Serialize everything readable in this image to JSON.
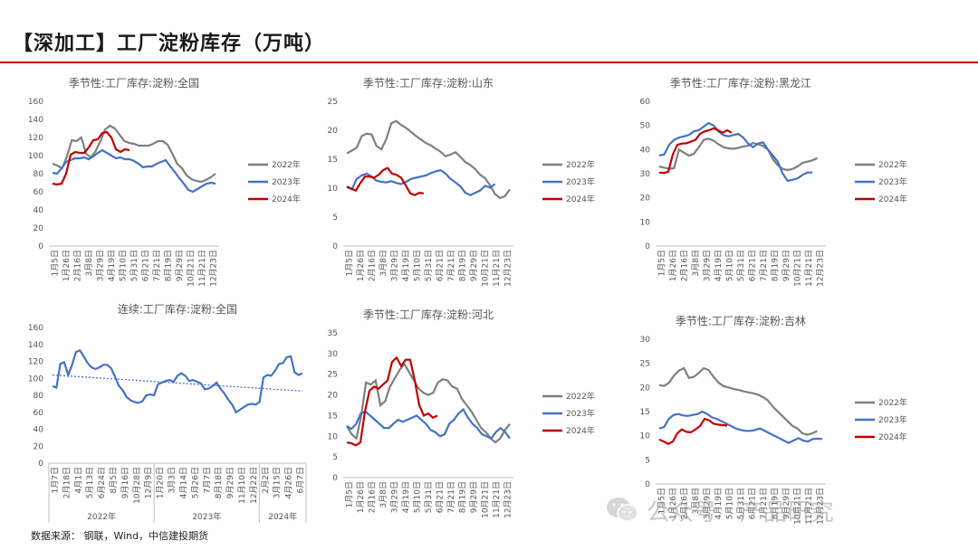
{
  "page": {
    "title": "【深加工】工厂淀粉库存（万吨）",
    "source": "数据来源：  钢联，Wind，中信建投期货",
    "watermark": "公众号 · 产品研究"
  },
  "colors": {
    "2022": "#7f7f7f",
    "2023": "#4472c4",
    "2024": "#c00000",
    "rule": "#c00000"
  },
  "season_ticks": [
    "1月5日",
    "1月26日",
    "2月16日",
    "3月8日",
    "3月29日",
    "4月19日",
    "5月10日",
    "5月31日",
    "6月21日",
    "7月21日",
    "8月19日",
    "9月29日",
    "10月21日",
    "11月21日",
    "12月23日"
  ],
  "chart_data": [
    {
      "id": "c1",
      "type": "line",
      "title": "季节性:工厂库存:淀粉:全国",
      "ylim": [
        0,
        160
      ],
      "yticks": [
        0,
        20,
        40,
        60,
        80,
        100,
        120,
        140,
        160
      ],
      "series": [
        {
          "name": "2022年",
          "values": [
            91,
            89,
            86,
            99,
            117,
            116,
            120,
            102,
            98,
            105,
            116,
            129,
            133,
            130,
            123,
            116,
            114,
            113,
            111,
            111,
            111,
            113,
            116,
            116,
            112,
            102,
            91,
            86,
            78,
            74,
            72,
            71,
            73,
            76,
            80
          ]
        },
        {
          "name": "2023年",
          "values": [
            81,
            80,
            86,
            93,
            95,
            97,
            97,
            98,
            96,
            99,
            103,
            106,
            103,
            100,
            97,
            98,
            96,
            96,
            94,
            91,
            87,
            88,
            88,
            91,
            93,
            95,
            88,
            82,
            75,
            69,
            62,
            60,
            63,
            66,
            69,
            70,
            69
          ]
        },
        {
          "name": "2024年",
          "values": [
            69,
            68,
            69,
            80,
            101,
            104,
            103,
            103,
            109,
            117,
            118,
            125,
            126,
            120,
            107,
            104,
            107,
            106
          ]
        }
      ]
    },
    {
      "id": "c2",
      "type": "line",
      "title": "季节性:工厂库存:淀粉:山东",
      "ylim": [
        0,
        25
      ],
      "yticks": [
        0,
        5,
        10,
        15,
        20,
        25
      ],
      "series": [
        {
          "name": "2022年",
          "values": [
            16,
            16.5,
            17,
            19,
            19.4,
            19.3,
            17.3,
            16.7,
            18.5,
            21.2,
            21.6,
            20.9,
            20.4,
            19.7,
            19,
            18.4,
            17.8,
            17.4,
            16.8,
            16.3,
            15.5,
            15.8,
            16.2,
            15.4,
            14.5,
            14,
            13.3,
            12.3,
            11.7,
            10.5,
            9,
            8.3,
            8.6,
            9.8
          ]
        },
        {
          "name": "2023年",
          "values": [
            10.2,
            9.8,
            11.6,
            12.2,
            12.5,
            12,
            11.3,
            11.1,
            11,
            11.2,
            10.9,
            10.7,
            11.1,
            11.6,
            11.8,
            12,
            12.2,
            12.6,
            12.9,
            13.1,
            12.5,
            11.6,
            11,
            10.3,
            9.2,
            8.8,
            9.2,
            9.6,
            10.4,
            10.1,
            10.7
          ]
        },
        {
          "name": "2024年",
          "values": [
            10.3,
            9.9,
            9.6,
            10.9,
            12,
            12,
            11.8,
            12.3,
            13.1,
            13.5,
            12.5,
            12.3,
            11.8,
            10.5,
            9.1,
            8.8,
            9.2,
            9.1
          ]
        }
      ]
    },
    {
      "id": "c3",
      "type": "line",
      "title": "季节性:工厂库存:淀粉:黑龙江",
      "ylim": [
        0,
        60
      ],
      "yticks": [
        0,
        10,
        20,
        30,
        40,
        50,
        60
      ],
      "series": [
        {
          "name": "2022年",
          "values": [
            33,
            32.5,
            32,
            32.3,
            40,
            38.7,
            37.5,
            38.2,
            41,
            44,
            44.5,
            43.7,
            42.2,
            41,
            40.5,
            40.3,
            40.7,
            41.3,
            41.6,
            42.8,
            42.2,
            41.5,
            40,
            36,
            33.5,
            32,
            31.5,
            32,
            33,
            34.5,
            35,
            35.5,
            36.5
          ]
        },
        {
          "name": "2023年",
          "values": [
            37.5,
            38,
            42,
            44,
            45,
            45.5,
            46,
            47.5,
            48,
            49.5,
            51,
            50,
            47.5,
            46,
            45.5,
            46,
            46.5,
            45,
            42.5,
            41,
            42.5,
            43,
            40,
            37.5,
            35,
            30,
            27,
            27.5,
            28,
            29.5,
            30.5,
            30.5
          ]
        },
        {
          "name": "2024年",
          "values": [
            30.5,
            30.3,
            30.8,
            38,
            42,
            42.5,
            42.6,
            43.3,
            44,
            46.5,
            47.5,
            48,
            48.8,
            48,
            47,
            48,
            47
          ]
        }
      ]
    },
    {
      "id": "c4",
      "type": "line",
      "title": "连续:工厂库存:淀粉:全国",
      "ylim": [
        0,
        160
      ],
      "yticks": [
        0,
        20,
        40,
        60,
        80,
        100,
        120,
        140,
        160
      ],
      "xticks": [
        "1月7日",
        "2月18日",
        "4月1日",
        "5月13日",
        "6月24日",
        "8月5日",
        "9月16日",
        "10月28日",
        "12月9日",
        "1月20日",
        "3月3日",
        "4月14日",
        "5月26日",
        "7月7日",
        "8月18日",
        "9月29日",
        "11月10日",
        "12月22日",
        "2月2日",
        "3月15日",
        "4月26日",
        "6月7日"
      ],
      "years": [
        "2022年",
        "2023年",
        "2024年"
      ],
      "trend": [
        104,
        85
      ],
      "series": [
        {
          "name": "全国",
          "values": [
            91,
            89,
            117,
            119,
            104,
            116,
            131,
            133,
            126,
            118,
            113,
            111,
            113,
            116,
            116,
            112,
            102,
            91,
            86,
            78,
            74,
            72,
            71,
            73,
            80,
            81,
            80,
            93,
            95,
            97,
            98,
            96,
            103,
            106,
            103,
            97,
            98,
            96,
            94,
            87,
            88,
            91,
            95,
            88,
            82,
            75,
            69,
            60,
            63,
            66,
            69,
            70,
            69,
            72,
            101,
            104,
            103,
            109,
            117,
            118,
            125,
            126,
            107,
            104,
            106
          ]
        }
      ]
    },
    {
      "id": "c5",
      "type": "line",
      "title": "季节性:工厂库存:淀粉:河北",
      "ylim": [
        0,
        35
      ],
      "yticks": [
        0,
        5,
        10,
        15,
        20,
        25,
        30,
        35
      ],
      "series": [
        {
          "name": "2022年",
          "values": [
            12.5,
            10.5,
            9.5,
            15,
            23,
            22.5,
            23.5,
            17.5,
            18.5,
            22,
            24,
            26,
            27.5,
            25.5,
            23.5,
            21.5,
            20.5,
            20,
            20.5,
            23,
            23.8,
            23.5,
            22,
            21.5,
            19,
            17.5,
            16,
            14,
            12,
            11,
            9.5,
            8.5,
            9.5,
            11.5,
            13
          ]
        },
        {
          "name": "2023年",
          "values": [
            12.5,
            11.8,
            13,
            15.5,
            16,
            15,
            14,
            13,
            12,
            12,
            13,
            14,
            13.5,
            14,
            14.5,
            15,
            14,
            13,
            11.5,
            11,
            10,
            10.5,
            13,
            14,
            15.5,
            16.5,
            14.5,
            13,
            12,
            10.5,
            10,
            9.5,
            11,
            12,
            11,
            9.5
          ]
        },
        {
          "name": "2024年",
          "values": [
            8.5,
            8.3,
            7.8,
            8.5,
            16,
            21,
            22,
            21.5,
            22.5,
            23.5,
            28,
            29,
            27,
            28.5,
            28.5,
            23.5,
            17.5,
            15,
            15.5,
            14.5,
            15
          ]
        }
      ]
    },
    {
      "id": "c6",
      "type": "line",
      "title": "季节性:工厂库存:淀粉:吉林",
      "ylim": [
        0,
        30
      ],
      "yticks": [
        0,
        5,
        10,
        15,
        20,
        25,
        30
      ],
      "series": [
        {
          "name": "2022年",
          "values": [
            20.5,
            20.3,
            21,
            22.5,
            23.5,
            24,
            22,
            22.2,
            23,
            24,
            23.6,
            22.2,
            21,
            20.3,
            20,
            19.7,
            19.5,
            19.2,
            19,
            18.8,
            18.5,
            18,
            17.3,
            16,
            15,
            14,
            13,
            12,
            11.5,
            10.5,
            10.2,
            10.5,
            11
          ]
        },
        {
          "name": "2023年",
          "values": [
            11.5,
            11.8,
            13.5,
            14.3,
            14.5,
            14.2,
            14.1,
            14.3,
            14.5,
            15,
            14.5,
            13.8,
            13.5,
            13,
            12.5,
            12,
            11.5,
            11.2,
            11,
            11,
            11.2,
            11.5,
            11,
            10.5,
            10,
            9.5,
            9,
            8.5,
            9,
            9.5,
            9,
            8.8,
            9.3,
            9.4,
            9.3
          ]
        },
        {
          "name": "2024年",
          "values": [
            9.2,
            8.8,
            8.3,
            8.8,
            10.5,
            11.3,
            10.8,
            10.7,
            11.3,
            12,
            13.5,
            13.2,
            12.5,
            12.3,
            12.2,
            12.1
          ]
        }
      ]
    }
  ]
}
